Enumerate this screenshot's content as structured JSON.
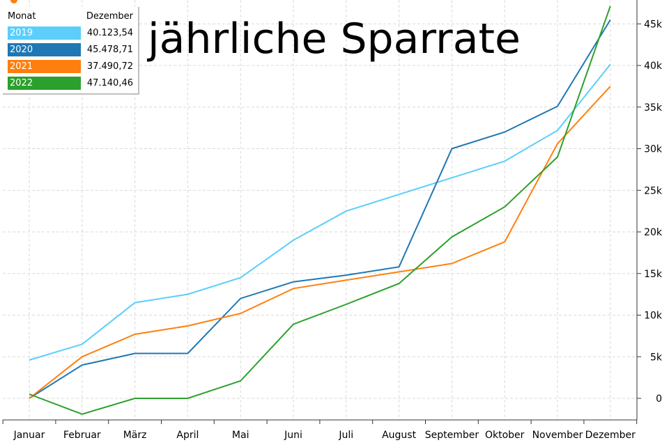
{
  "chart_data": {
    "type": "line",
    "title": "jährliche Sparrate",
    "x": [
      "Januar",
      "Februar",
      "März",
      "April",
      "Mai",
      "Juni",
      "Juli",
      "August",
      "September",
      "Oktober",
      "November",
      "Dezember"
    ],
    "ylim": [
      -2500,
      48000
    ],
    "yticks": [
      0,
      5000,
      10000,
      15000,
      20000,
      25000,
      30000,
      35000,
      40000,
      45000
    ],
    "ytick_labels": [
      "0",
      "5k",
      "10k",
      "15k",
      "20k",
      "25k",
      "30k",
      "35k",
      "40k",
      "45k"
    ],
    "grid": true,
    "y_axis_position": "right",
    "series": [
      {
        "name": "2019",
        "color": "#5bcefa",
        "values": [
          4600,
          6500,
          11500,
          12500,
          14500,
          19000,
          22500,
          24500,
          26500,
          28500,
          32200,
          40123.54
        ]
      },
      {
        "name": "2020",
        "color": "#1f77b4",
        "values": [
          0,
          4000,
          5400,
          5400,
          12000,
          14000,
          14800,
          15800,
          30000,
          32000,
          35100,
          45478.71
        ]
      },
      {
        "name": "2021",
        "color": "#ff7f0e",
        "values": [
          0,
          5000,
          7700,
          8700,
          10200,
          13200,
          14200,
          15200,
          16200,
          18800,
          30600,
          37490.72
        ]
      },
      {
        "name": "2022",
        "color": "#2ca02c",
        "values": [
          500,
          -1900,
          0,
          0,
          2100,
          8900,
          11300,
          13800,
          19400,
          23000,
          29000,
          47140.46
        ]
      }
    ]
  },
  "legend": {
    "header_col1": "Monat",
    "header_col2": "Dezember",
    "rows": [
      {
        "name": "2019",
        "value": "40.123,54",
        "color": "#5bcefa"
      },
      {
        "name": "2020",
        "value": "45.478,71",
        "color": "#1f77b4"
      },
      {
        "name": "2021",
        "value": "37.490,72",
        "color": "#ff7f0e"
      },
      {
        "name": "2022",
        "value": "47.140,46",
        "color": "#2ca02c"
      }
    ]
  }
}
